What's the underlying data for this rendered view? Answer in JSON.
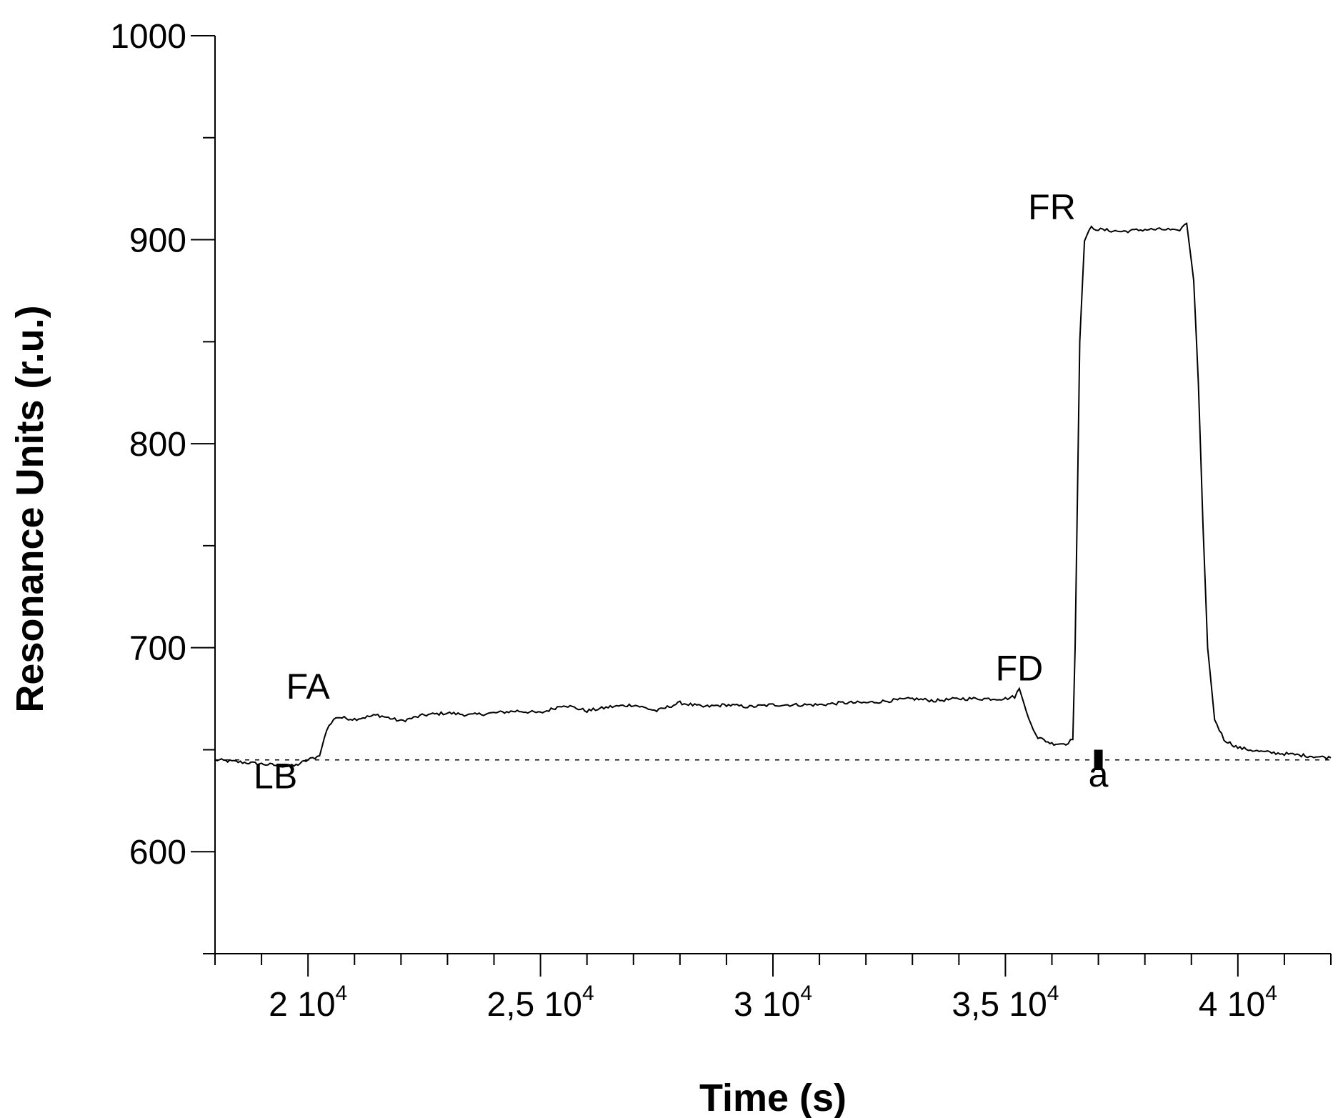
{
  "chart_data": {
    "type": "line",
    "title": "",
    "xlabel": "Time (s)",
    "ylabel": "Resonance Units (r.u.)",
    "xlim": [
      18000,
      42000
    ],
    "ylim": [
      550,
      1000
    ],
    "x_ticks": [
      {
        "value": 20000,
        "mantissa": "2",
        "base": "10",
        "exponent": "4"
      },
      {
        "value": 25000,
        "mantissa": "2,5",
        "base": "10",
        "exponent": "4"
      },
      {
        "value": 30000,
        "mantissa": "3",
        "base": "10",
        "exponent": "4"
      },
      {
        "value": 35000,
        "mantissa": "3,5",
        "base": "10",
        "exponent": "4"
      },
      {
        "value": 40000,
        "mantissa": "4",
        "base": "10",
        "exponent": "4"
      }
    ],
    "x_minor_step": 1000,
    "y_ticks": [
      {
        "value": 600,
        "label": "600"
      },
      {
        "value": 700,
        "label": "700"
      },
      {
        "value": 800,
        "label": "800"
      },
      {
        "value": 900,
        "label": "900"
      },
      {
        "value": 1000,
        "label": "1000"
      }
    ],
    "y_minor_step": 50,
    "grid": false,
    "baseline": {
      "y": 645,
      "style": "dashed"
    },
    "series": [
      {
        "x": [
          18000,
          18500,
          19000,
          19500,
          19700,
          20000,
          20250,
          20400,
          20600,
          21000,
          21500,
          22000,
          22500,
          23000,
          23500,
          24000,
          24500,
          25000,
          25500,
          26000,
          26500,
          27000,
          27500,
          28000,
          28500,
          29000,
          29500,
          30000,
          30500,
          31000,
          31500,
          32000,
          32500,
          33000,
          33500,
          34000,
          34500,
          35000,
          35200,
          35300,
          35500,
          35700,
          36000,
          36300,
          36450,
          36500,
          36600,
          36700,
          36850,
          37000,
          37500,
          38000,
          38500,
          38700,
          38900,
          39050,
          39150,
          39250,
          39350,
          39500,
          39700,
          40000,
          40500,
          41000,
          41500,
          42000
        ],
        "y": [
          645,
          644,
          643,
          642,
          642,
          645,
          647,
          660,
          666,
          665,
          667,
          664,
          667,
          668,
          667,
          668,
          669,
          668,
          672,
          669,
          671,
          672,
          669,
          673,
          671,
          672,
          671,
          672,
          672,
          672,
          673,
          673,
          674,
          675,
          674,
          675,
          675,
          675,
          676,
          680,
          665,
          656,
          653,
          653,
          655,
          700,
          850,
          900,
          906,
          905,
          904,
          905,
          905,
          904,
          908,
          880,
          830,
          760,
          700,
          665,
          655,
          651,
          649,
          648,
          647,
          646
        ]
      }
    ],
    "annotations": [
      {
        "label": "LB",
        "x": 19300,
        "y": 631
      },
      {
        "label": "FA",
        "x": 20000,
        "y": 675
      },
      {
        "label": "FD",
        "x": 35300,
        "y": 684
      },
      {
        "label": "FR",
        "x": 36000,
        "y": 910
      },
      {
        "label": "a",
        "x": 37000,
        "y": 632
      }
    ],
    "markers": [
      {
        "type": "bar",
        "x": 37000,
        "y_from": 640,
        "y_to": 650
      }
    ]
  }
}
